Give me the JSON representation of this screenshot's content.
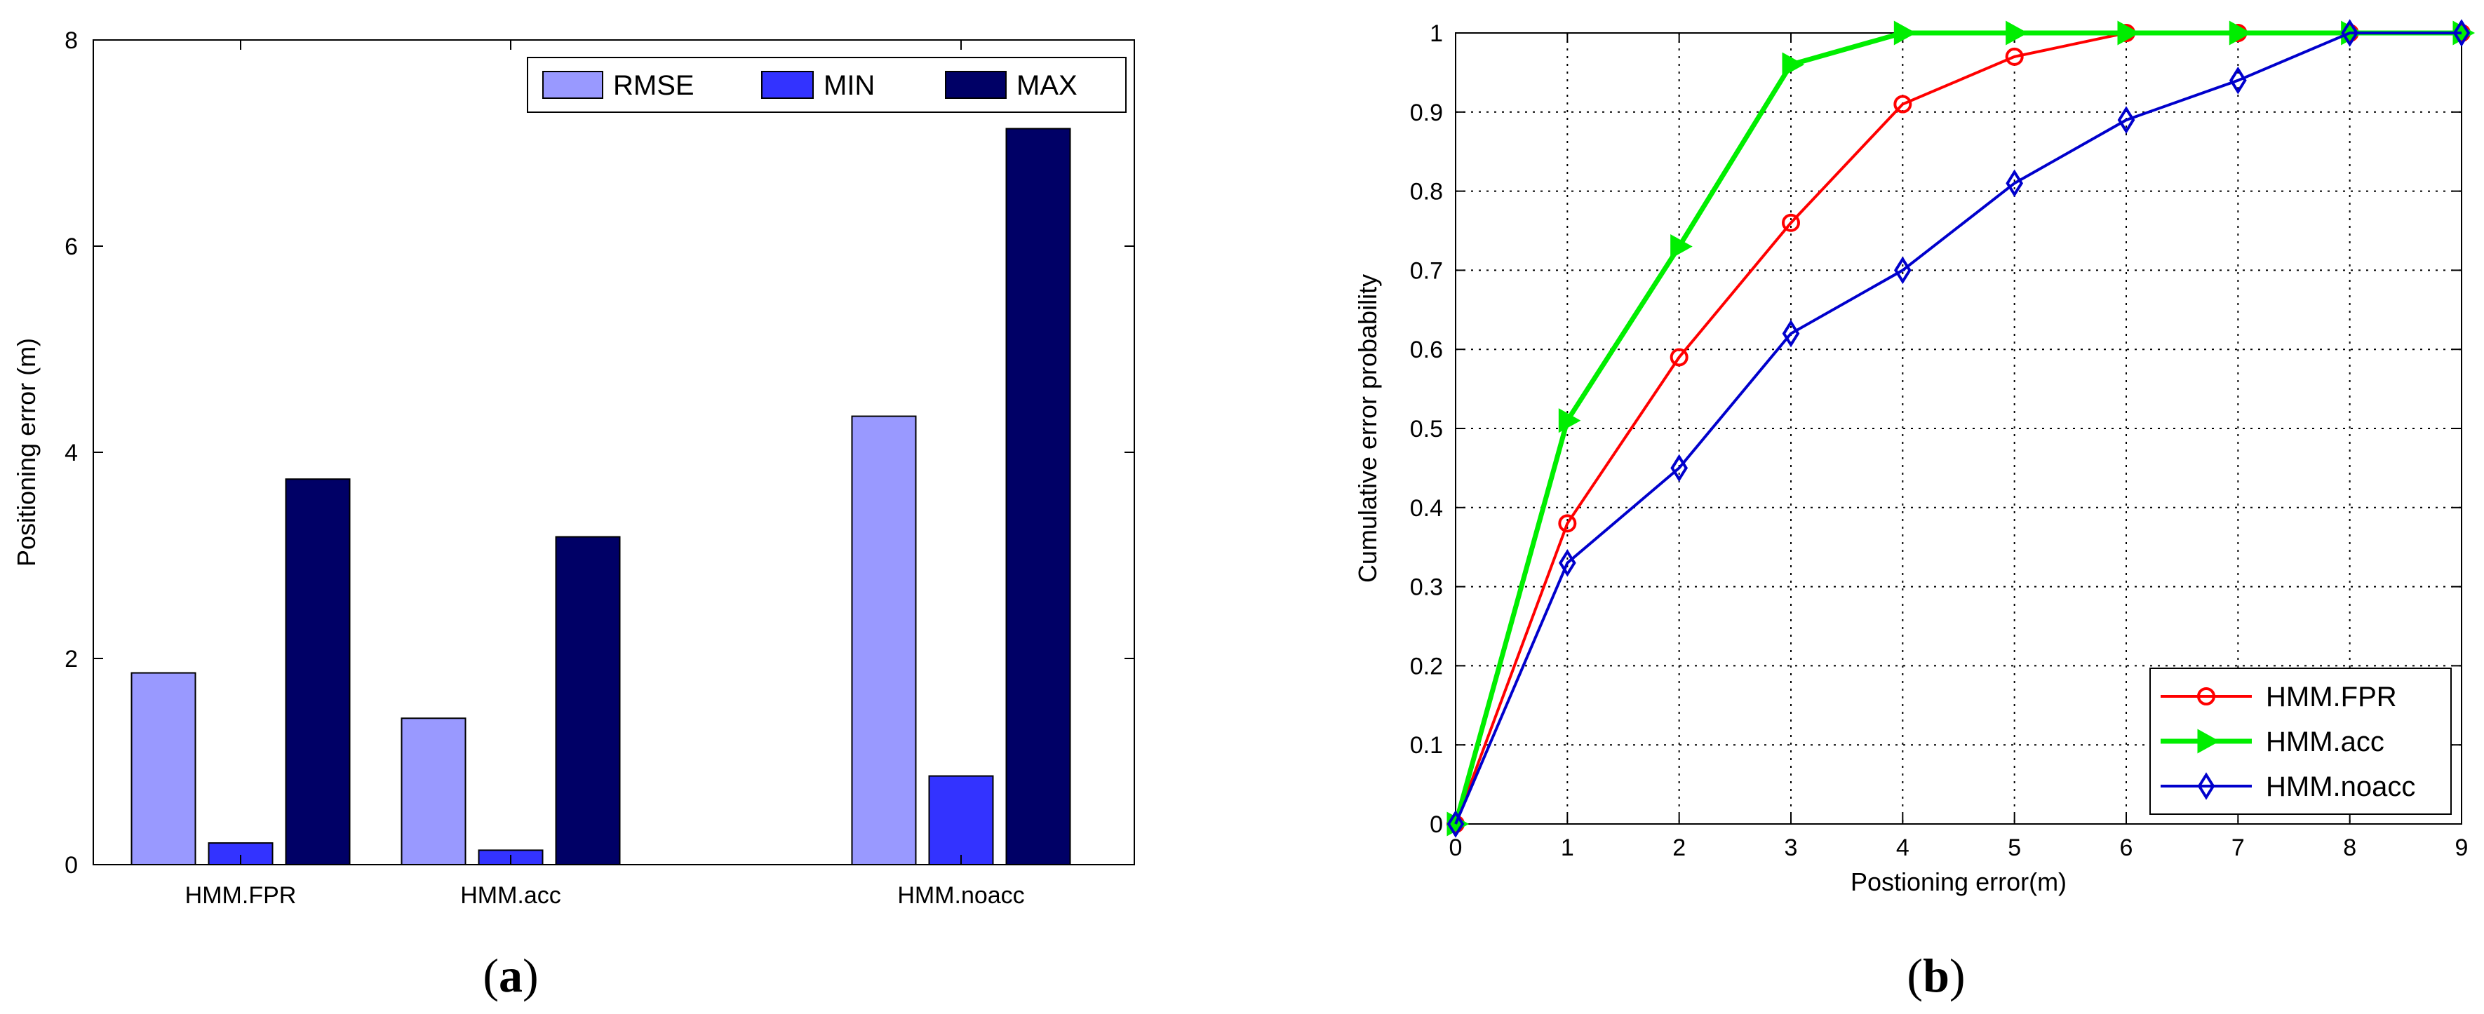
{
  "chart_data": [
    {
      "type": "bar",
      "caption": "a",
      "categories": [
        "HMM.FPR",
        "HMM.acc",
        "HMM.noacc"
      ],
      "series": [
        {
          "name": "RMSE",
          "values": [
            1.86,
            1.42,
            4.35
          ],
          "color": "#9999ff"
        },
        {
          "name": "MIN",
          "values": [
            0.21,
            0.14,
            0.86
          ],
          "color": "#3333ff"
        },
        {
          "name": "MAX",
          "values": [
            3.74,
            3.18,
            7.14
          ],
          "color": "#000066"
        }
      ],
      "ylabel": "Positioning error (m)",
      "ylim": [
        0,
        8
      ],
      "yticks": [
        "0",
        "2",
        "4",
        "6",
        "8"
      ],
      "grid": false,
      "legend": "top-right"
    },
    {
      "type": "line",
      "caption": "b",
      "x": [
        0,
        1,
        2,
        3,
        4,
        5,
        6,
        7,
        8,
        9
      ],
      "series": [
        {
          "name": "HMM.FPR",
          "marker": "circle",
          "color": "#ff0000",
          "values": [
            0,
            0.38,
            0.59,
            0.76,
            0.91,
            0.97,
            1.0,
            1.0,
            1.0,
            1.0
          ]
        },
        {
          "name": "HMM.acc",
          "marker": "triangle-right",
          "color": "#00ee00",
          "values": [
            0,
            0.51,
            0.73,
            0.96,
            1.0,
            1.0,
            1.0,
            1.0,
            1.0,
            1.0
          ]
        },
        {
          "name": "HMM.noacc",
          "marker": "diamond",
          "color": "#0000cc",
          "values": [
            0,
            0.33,
            0.45,
            0.62,
            0.7,
            0.81,
            0.89,
            0.94,
            1.0,
            1.0
          ]
        }
      ],
      "xlabel": "Postioning error(m)",
      "ylabel": "Cumulative error probability",
      "xlim": [
        0,
        9
      ],
      "ylim": [
        0,
        1
      ],
      "xticks": [
        "0",
        "1",
        "2",
        "3",
        "4",
        "5",
        "6",
        "7",
        "8",
        "9"
      ],
      "yticks": [
        "0",
        "0.1",
        "0.2",
        "0.3",
        "0.4",
        "0.5",
        "0.6",
        "0.7",
        "0.8",
        "0.9",
        "1"
      ],
      "grid": true,
      "legend": "bottom-right"
    }
  ]
}
